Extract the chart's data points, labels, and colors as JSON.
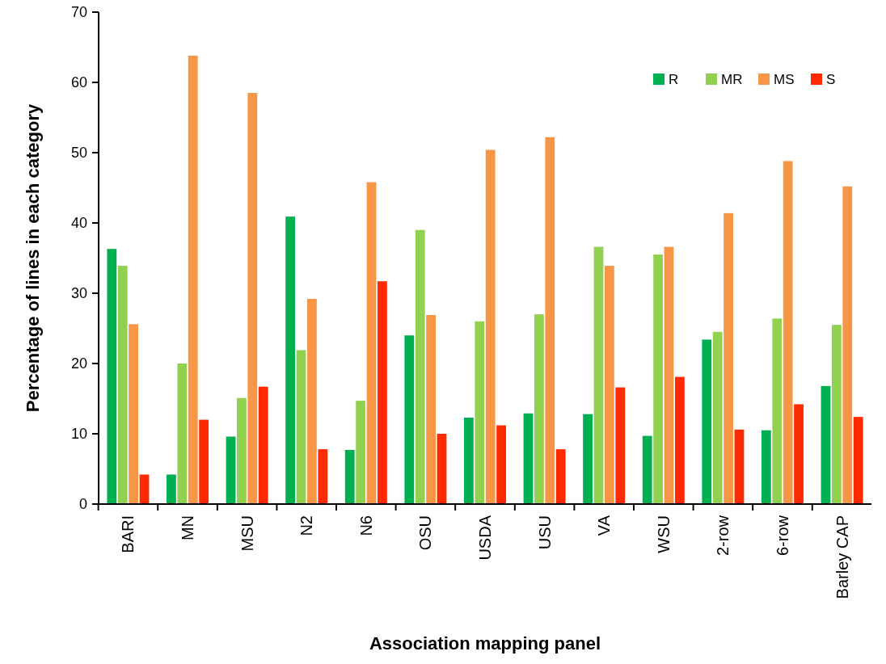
{
  "chart_data": {
    "type": "bar",
    "xlabel": "Association mapping panel",
    "ylabel": "Percentage of lines in each category",
    "categories": [
      "BARI",
      "MN",
      "MSU",
      "N2",
      "N6",
      "OSU",
      "USDA",
      "USU",
      "VA",
      "WSU",
      "2-row",
      "6-row",
      "Barley CAP"
    ],
    "series": [
      {
        "name": "R",
        "color": "#00b050",
        "values": [
          36.3,
          4.2,
          9.6,
          40.9,
          7.7,
          24.0,
          12.3,
          12.9,
          12.8,
          9.7,
          23.4,
          10.5,
          16.8
        ]
      },
      {
        "name": "MR",
        "color": "#92d050",
        "values": [
          33.9,
          20.0,
          15.1,
          21.9,
          14.7,
          39.0,
          26.0,
          27.0,
          36.6,
          35.5,
          24.5,
          26.4,
          25.5
        ]
      },
      {
        "name": "MS",
        "color": "#f79646",
        "values": [
          25.6,
          63.8,
          58.5,
          29.2,
          45.8,
          26.9,
          50.4,
          52.2,
          33.9,
          36.6,
          41.4,
          48.8,
          45.2
        ]
      },
      {
        "name": "S",
        "color": "#ff2a00",
        "values": [
          4.2,
          12.0,
          16.7,
          7.8,
          31.7,
          10.0,
          11.2,
          7.8,
          16.6,
          18.1,
          10.6,
          14.2,
          12.4
        ]
      }
    ],
    "ylim": [
      0,
      70
    ],
    "yticks": [
      0,
      10,
      20,
      30,
      40,
      50,
      60,
      70
    ],
    "grid": false,
    "legend": "top right"
  }
}
